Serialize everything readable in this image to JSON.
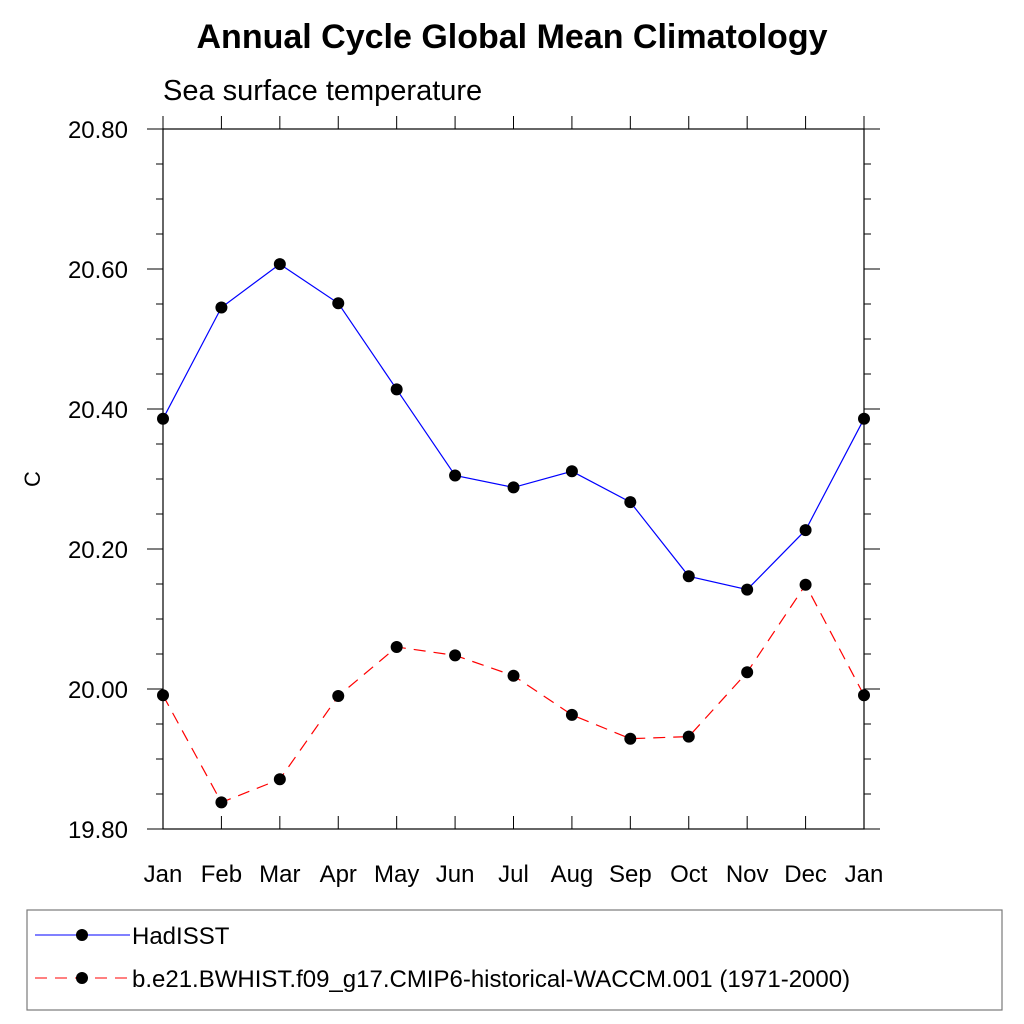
{
  "chart_data": {
    "type": "line",
    "title": "Annual Cycle Global Mean Climatology",
    "subtitle": "Sea surface temperature",
    "xlabel": "",
    "ylabel": "C",
    "categories": [
      "Jan",
      "Feb",
      "Mar",
      "Apr",
      "May",
      "Jun",
      "Jul",
      "Aug",
      "Sep",
      "Oct",
      "Nov",
      "Dec",
      "Jan"
    ],
    "ylim": [
      19.8,
      20.8
    ],
    "yticks": [
      "19.80",
      "20.00",
      "20.20",
      "20.40",
      "20.60",
      "20.80"
    ],
    "grid": false,
    "legend_position": "bottom",
    "series": [
      {
        "name": "HadISST",
        "color": "#0000ff",
        "dash": "solid",
        "values": [
          20.386,
          20.545,
          20.607,
          20.551,
          20.428,
          20.305,
          20.288,
          20.311,
          20.267,
          20.161,
          20.142,
          20.227,
          20.386
        ]
      },
      {
        "name": "b.e21.BWHIST.f09_g17.CMIP6-historical-WACCM.001 (1971-2000)",
        "color": "#ff0000",
        "dash": "dashed",
        "values": [
          19.991,
          19.838,
          19.871,
          19.99,
          20.06,
          20.048,
          20.019,
          19.963,
          19.929,
          19.932,
          20.024,
          20.149,
          19.991
        ]
      }
    ]
  }
}
